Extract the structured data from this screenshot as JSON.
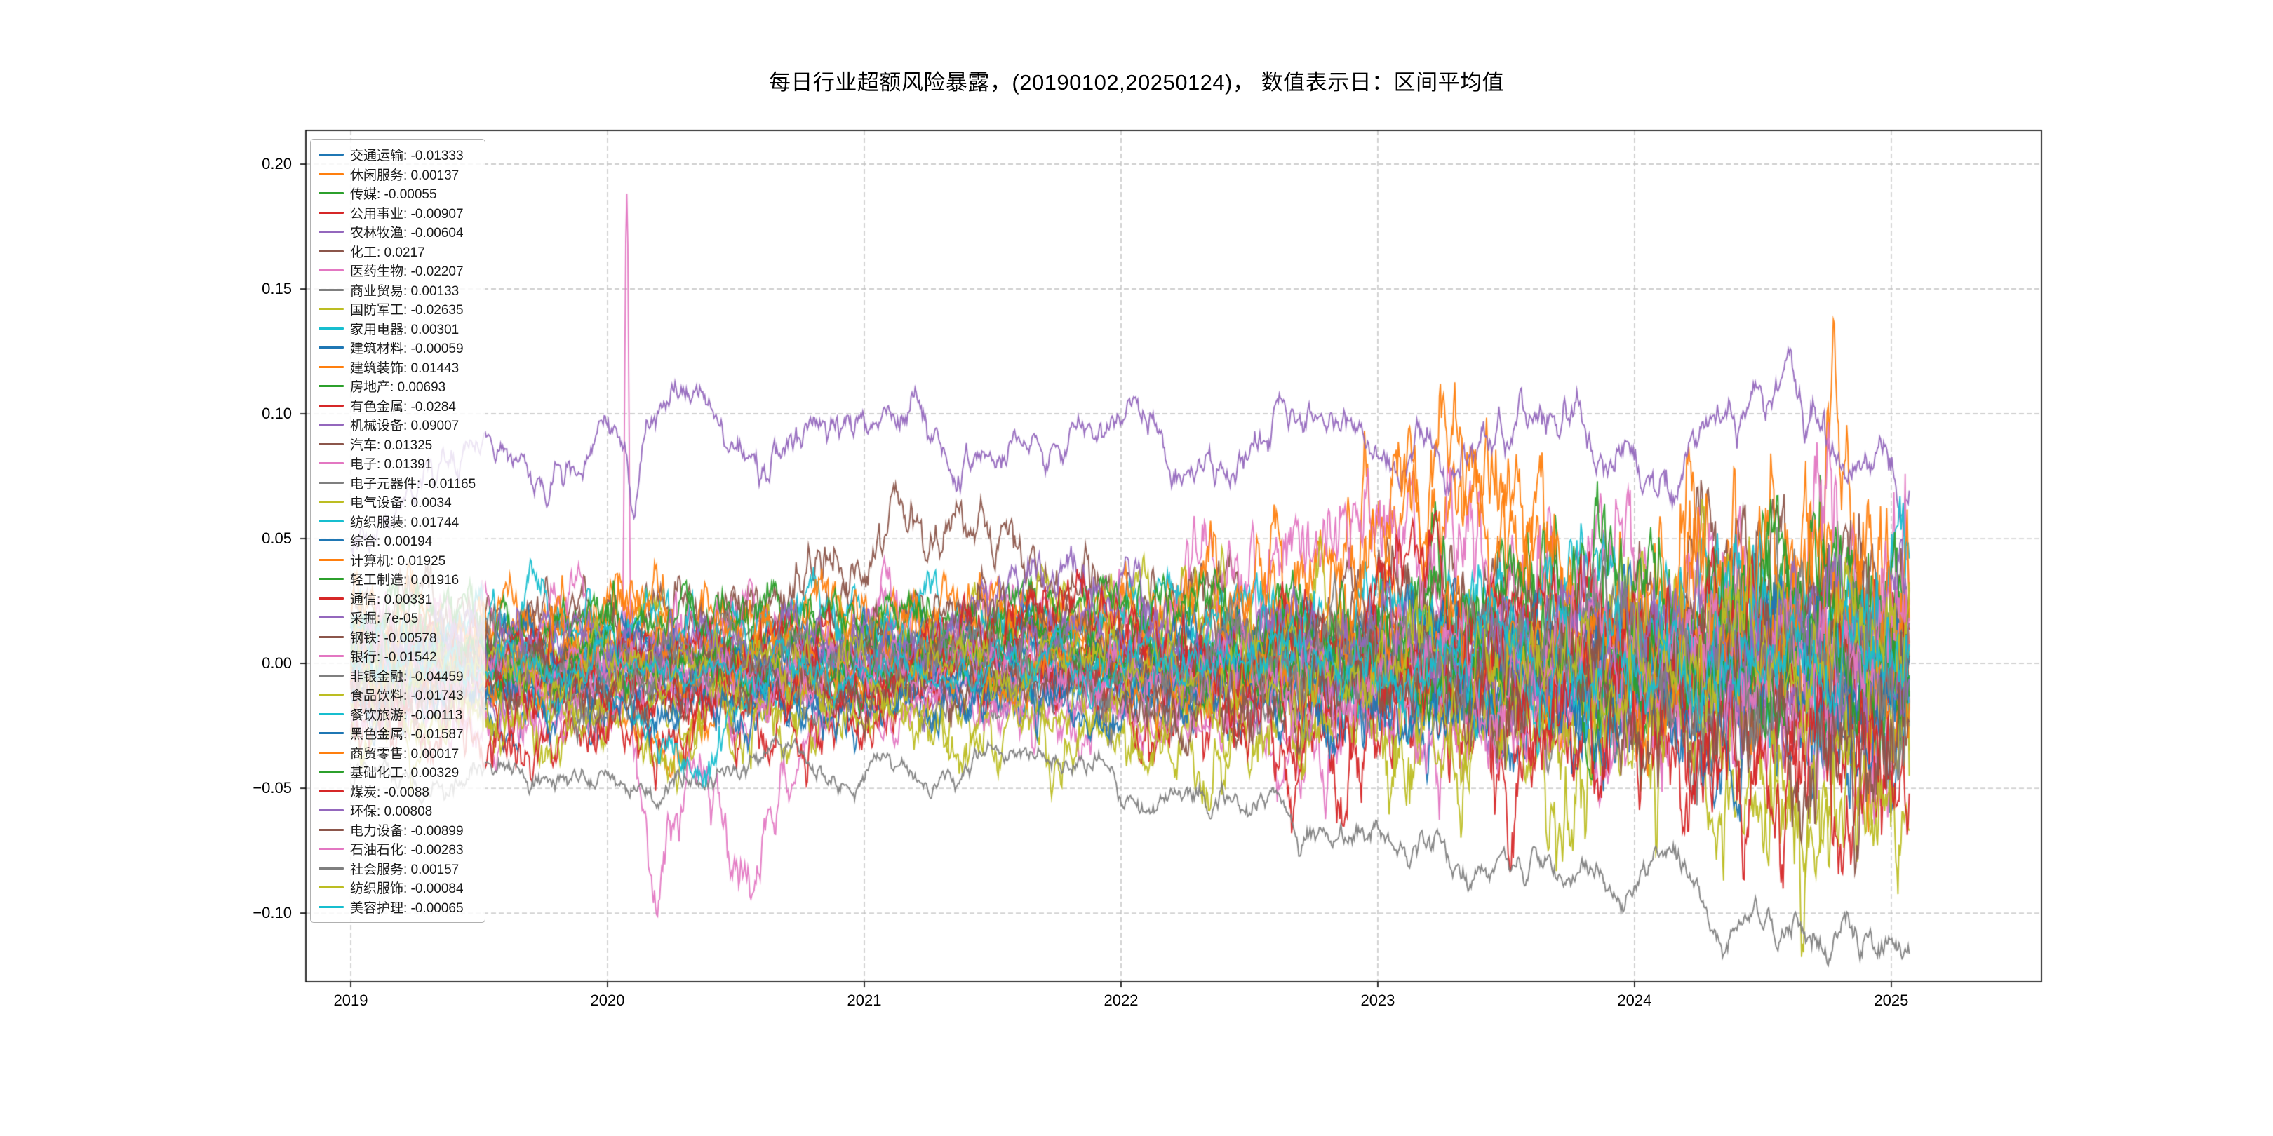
{
  "chart_data": {
    "type": "line",
    "title": "每日行业超额风险暴露，(20190102,20250124)，  数值表示日：区间平均值",
    "xlabel": "",
    "ylabel": "",
    "x_ticks": [
      2019,
      2020,
      2021,
      2022,
      2023,
      2024,
      2025
    ],
    "y_ticks": [
      {
        "v": 0.2,
        "label": "0.20"
      },
      {
        "v": 0.15,
        "label": "0.15"
      },
      {
        "v": 0.1,
        "label": "0.10"
      },
      {
        "v": 0.05,
        "label": "0.05"
      },
      {
        "v": 0.0,
        "label": "0.00"
      },
      {
        "v": -0.05,
        "label": "−0.05"
      },
      {
        "v": -0.1,
        "label": "−0.10"
      }
    ],
    "xlim": [
      2018.825,
      2025.585
    ],
    "ylim": [
      -0.1275,
      0.2135
    ],
    "x_start": 2019.0,
    "x_end": 2025.07,
    "grid": {
      "style": "dashed",
      "color": "#c0c0c0"
    },
    "legend_position": "upper-left",
    "series": [
      {
        "label": "交通运输",
        "value_label": "-0.01333",
        "color": "#1f77b4",
        "gen": {}
      },
      {
        "label": "休闲服务",
        "value_label": "0.00137",
        "color": "#ff7f0e",
        "gen": {
          "growth": 0.6,
          "bumps": [
            {
              "t": 2020.28,
              "w": 0.22,
              "a": -0.045
            }
          ]
        }
      },
      {
        "label": "传媒",
        "value_label": "-0.00055",
        "color": "#2ca02c",
        "gen": {
          "growth": 0.65
        }
      },
      {
        "label": "公用事业",
        "value_label": "-0.00907",
        "color": "#d62728",
        "gen": {}
      },
      {
        "label": "农林牧渔",
        "value_label": "-0.00604",
        "color": "#9467bd",
        "gen": {
          "vol": 0.011
        }
      },
      {
        "label": "化工",
        "value_label": "0.0217",
        "color": "#8c564b",
        "gen": {
          "vol": 0.0105,
          "bumps": [
            {
              "t": 2021.35,
              "w": 0.55,
              "a": 0.03
            }
          ]
        }
      },
      {
        "label": "医药生物",
        "value_label": "-0.02207",
        "color": "#e377c2",
        "gen": {
          "vol": 0.012,
          "growth": 0.4,
          "bumps": [
            {
              "t": 2020.075,
              "w": 0.012,
              "a": 0.215
            },
            {
              "t": 2020.2,
              "w": 0.1,
              "a": -0.065
            },
            {
              "t": 2020.55,
              "w": 0.16,
              "a": -0.065
            },
            {
              "t": 2021.1,
              "w": 0.2,
              "a": 0.03
            }
          ]
        }
      },
      {
        "label": "商业贸易",
        "value_label": "0.00133",
        "color": "#7f7f7f",
        "gen": {}
      },
      {
        "label": "国防军工",
        "value_label": "-0.02635",
        "color": "#bcbd22",
        "gen": {
          "vol": 0.012,
          "growth": 0.7
        }
      },
      {
        "label": "家用电器",
        "value_label": "0.00301",
        "color": "#17becf",
        "gen": {
          "vol": 0.007
        }
      },
      {
        "label": "建筑材料",
        "value_label": "-0.00059",
        "color": "#1f77b4",
        "gen": {}
      },
      {
        "label": "建筑装饰",
        "value_label": "0.01443",
        "color": "#ff7f0e",
        "gen": {
          "vol": 0.011,
          "growth": 0.8,
          "bumps": [
            {
              "t": 2023.15,
              "w": 0.4,
              "a": 0.05
            },
            {
              "t": 2024.85,
              "w": 0.25,
              "a": 0.04
            }
          ]
        }
      },
      {
        "label": "房地产",
        "value_label": "0.00693",
        "color": "#2ca02c",
        "gen": {
          "vol": 0.011,
          "growth": 0.6
        }
      },
      {
        "label": "有色金属",
        "value_label": "-0.0284",
        "color": "#d62728",
        "gen": {
          "vol": 0.012,
          "growth": 0.65,
          "bumps": [
            {
              "t": 2021.6,
              "w": 0.5,
              "a": 0.03
            }
          ]
        }
      },
      {
        "label": "机械设备",
        "value_label": "0.09007",
        "color": "#9467bd",
        "gen": {
          "vol": 0.0065,
          "phi": 0.93,
          "growth": 0.12,
          "ramp": {
            "start": 0.6,
            "full": 2019.9
          },
          "wave": {
            "amp": 0.011,
            "period": 0.85
          },
          "bumps": [
            {
              "t": 2020.1,
              "w": 0.03,
              "a": -0.035
            }
          ]
        }
      },
      {
        "label": "汽车",
        "value_label": "0.01325",
        "color": "#8c564b",
        "gen": {
          "growth": 0.6
        }
      },
      {
        "label": "电子",
        "value_label": "0.01391",
        "color": "#e377c2",
        "gen": {
          "vol": 0.012,
          "growth": 0.75,
          "bumps": [
            {
              "t": 2023.0,
              "w": 0.8,
              "a": 0.035
            }
          ]
        }
      },
      {
        "label": "电子元器件",
        "value_label": "-0.01165",
        "color": "#7f7f7f",
        "gen": {}
      },
      {
        "label": "电气设备",
        "value_label": "0.0034",
        "color": "#bcbd22",
        "gen": {
          "vol": 0.011,
          "growth": 0.65,
          "bumps": [
            {
              "t": 2021.7,
              "w": 0.5,
              "a": 0.03
            }
          ]
        }
      },
      {
        "label": "纺织服装",
        "value_label": "0.01744",
        "color": "#17becf",
        "gen": {}
      },
      {
        "label": "综合",
        "value_label": "0.00194",
        "color": "#1f77b4",
        "gen": {}
      },
      {
        "label": "计算机",
        "value_label": "0.01925",
        "color": "#ff7f0e",
        "gen": {
          "vol": 0.012,
          "growth": 0.7,
          "bumps": [
            {
              "t": 2023.28,
              "w": 0.38,
              "a": 0.05
            }
          ]
        }
      },
      {
        "label": "轻工制造",
        "value_label": "0.01916",
        "color": "#2ca02c",
        "gen": {
          "growth": 0.6
        }
      },
      {
        "label": "通信",
        "value_label": "0.00331",
        "color": "#d62728",
        "gen": {
          "bumps": [
            {
              "t": 2023.3,
              "w": 0.5,
              "a": 0.03
            }
          ]
        }
      },
      {
        "label": "采掘",
        "value_label": "7e-05",
        "color": "#9467bd",
        "gen": {
          "bumps": [
            {
              "t": 2021.7,
              "w": 0.4,
              "a": 0.035
            }
          ]
        }
      },
      {
        "label": "钢铁",
        "value_label": "-0.00578",
        "color": "#8c564b",
        "gen": {
          "bumps": [
            {
              "t": 2021.5,
              "w": 0.4,
              "a": 0.03
            }
          ]
        }
      },
      {
        "label": "银行",
        "value_label": "-0.01542",
        "color": "#e377c2",
        "gen": {
          "vol": 0.008
        }
      },
      {
        "label": "非银金融",
        "value_label": "-0.04459",
        "color": "#7f7f7f",
        "gen": {
          "vol": 0.0045,
          "phi": 0.96,
          "growth": 0.15,
          "trend": {
            "start": 2021.9,
            "delta": -0.072
          }
        }
      },
      {
        "label": "食品饮料",
        "value_label": "-0.01743",
        "color": "#bcbd22",
        "gen": {
          "growth": 0.45,
          "trend": {
            "start": 2023.0,
            "delta": -0.04
          }
        }
      },
      {
        "label": "餐饮旅游",
        "value_label": "-0.00113",
        "color": "#17becf",
        "gen": {
          "bumps": [
            {
              "t": 2020.3,
              "w": 0.28,
              "a": -0.04
            }
          ]
        }
      },
      {
        "label": "黑色金属",
        "value_label": "-0.01587",
        "color": "#1f77b4",
        "gen": {
          "growth": 0.45
        }
      },
      {
        "label": "商贸零售",
        "value_label": "0.00017",
        "color": "#ff7f0e",
        "gen": {
          "growth": 0.6,
          "bumps": [
            {
              "t": 2024.9,
              "w": 0.15,
              "a": 0.05
            }
          ]
        }
      },
      {
        "label": "基础化工",
        "value_label": "0.00329",
        "color": "#2ca02c",
        "gen": {}
      },
      {
        "label": "煤炭",
        "value_label": "-0.0088",
        "color": "#d62728",
        "gen": {
          "vol": 0.011,
          "bumps": [
            {
              "t": 2021.7,
              "w": 0.45,
              "a": 0.035
            },
            {
              "t": 2024.6,
              "w": 0.45,
              "a": -0.035
            }
          ]
        }
      },
      {
        "label": "环保",
        "value_label": "0.00808",
        "color": "#9467bd",
        "gen": {
          "growth": 0.45
        }
      },
      {
        "label": "电力设备",
        "value_label": "-0.00899",
        "color": "#8c564b",
        "gen": {
          "vol": 0.011,
          "growth": 0.6,
          "trend": {
            "start": 2023.5,
            "delta": -0.03
          }
        }
      },
      {
        "label": "石油石化",
        "value_label": "-0.00283",
        "color": "#e377c2",
        "gen": {
          "vol": 0.009
        }
      },
      {
        "label": "社会服务",
        "value_label": "0.00157",
        "color": "#7f7f7f",
        "gen": {}
      },
      {
        "label": "纺织服饰",
        "value_label": "-0.00084",
        "color": "#bcbd22",
        "gen": {}
      },
      {
        "label": "美容护理",
        "value_label": "-0.00065",
        "color": "#17becf",
        "gen": {
          "vol": 0.007
        }
      }
    ]
  }
}
